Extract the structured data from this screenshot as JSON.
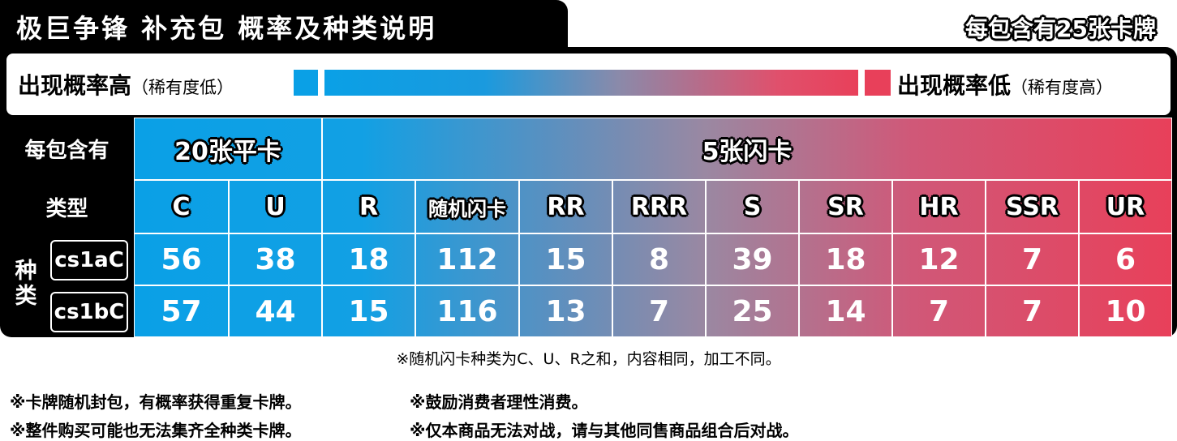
{
  "header": {
    "title": "极巨争锋 补充包 概率及种类说明",
    "cards_per_pack": "每包含有25张卡牌"
  },
  "legend": {
    "high": "出现概率高",
    "high_note": "（稀有度低）",
    "low": "出现概率低",
    "low_note": "（稀有度高）"
  },
  "table": {
    "pack_label": "每包含有",
    "groups": [
      "20张平卡",
      "5张闪卡"
    ],
    "type_label": "类型",
    "types": [
      "C",
      "U",
      "R",
      "随机闪卡",
      "RR",
      "RRR",
      "S",
      "SR",
      "HR",
      "SSR",
      "UR"
    ],
    "kind_label": "种类",
    "rows": [
      {
        "name": "cs1aC",
        "values": [
          56,
          38,
          18,
          112,
          15,
          8,
          39,
          18,
          12,
          7,
          6
        ]
      },
      {
        "name": "cs1bC",
        "values": [
          57,
          44,
          15,
          116,
          13,
          7,
          25,
          14,
          7,
          7,
          10
        ]
      }
    ]
  },
  "notes": {
    "footnote": "※随机闪卡种类为C、U、R之和，内容相同，加工不同。",
    "items": [
      "※卡牌随机封包，有概率获得重复卡牌。",
      "※鼓励消费者理性消费。",
      "※整件购买可能也无法集齐全种类卡牌。",
      "※仅本商品无法对战，请与其他同售商品组合后对战。"
    ]
  }
}
